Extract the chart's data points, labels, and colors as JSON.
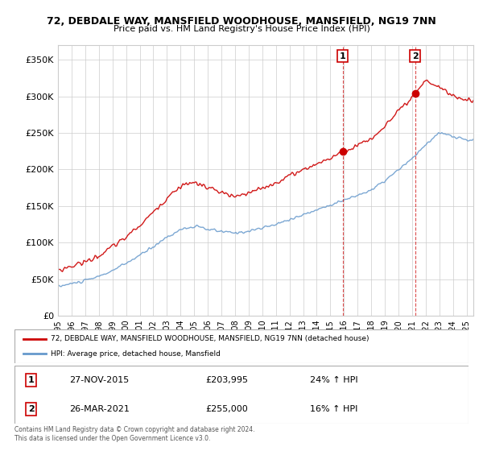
{
  "title1": "72, DEBDALE WAY, MANSFIELD WOODHOUSE, MANSFIELD, NG19 7NN",
  "title2": "Price paid vs. HM Land Registry's House Price Index (HPI)",
  "ylabel_ticks": [
    "£0",
    "£50K",
    "£100K",
    "£150K",
    "£200K",
    "£250K",
    "£300K",
    "£350K"
  ],
  "ytick_values": [
    0,
    50000,
    100000,
    150000,
    200000,
    250000,
    300000,
    350000
  ],
  "ylim": [
    0,
    370000
  ],
  "legend_line1": "72, DEBDALE WAY, MANSFIELD WOODHOUSE, MANSFIELD, NG19 7NN (detached house)",
  "legend_line2": "HPI: Average price, detached house, Mansfield",
  "sale1_date": "27-NOV-2015",
  "sale1_price": "£203,995",
  "sale1_hpi": "24% ↑ HPI",
  "sale1_year": 2015.9,
  "sale2_date": "26-MAR-2021",
  "sale2_price": "£255,000",
  "sale2_hpi": "16% ↑ HPI",
  "sale2_year": 2021.23,
  "red_color": "#cc0000",
  "blue_color": "#6699cc",
  "vline_color": "#cc0000",
  "footer": "Contains HM Land Registry data © Crown copyright and database right 2024.\nThis data is licensed under the Open Government Licence v3.0."
}
